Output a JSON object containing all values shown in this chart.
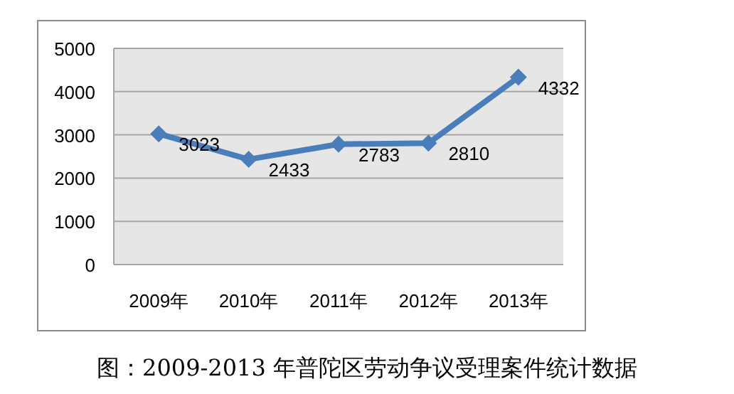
{
  "chart_data": {
    "type": "line",
    "categories": [
      "2009年",
      "2010年",
      "2011年",
      "2012年",
      "2013年"
    ],
    "series": [
      {
        "color": "#4a7ebb",
        "values": [
          3023,
          2433,
          2783,
          2810,
          4332
        ]
      }
    ],
    "ylim": [
      0,
      5000
    ],
    "yticks": [
      0,
      1000,
      2000,
      3000,
      4000,
      5000
    ],
    "grid": "y",
    "marker": "diamond",
    "line_style": "solid",
    "data_labels": true,
    "annotations": [
      "图：2009-2013 年普陀区劳动争议受理案件统计数据"
    ]
  }
}
